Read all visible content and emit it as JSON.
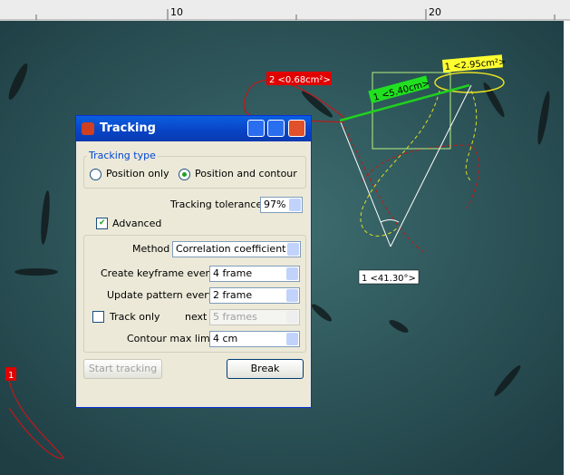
{
  "ruler": {
    "labels": [
      "10",
      "20"
    ]
  },
  "overlay": {
    "labels": [
      "2 <0.68cm²>",
      "1 <2.95cm²>",
      "1 <5.40cm>",
      "1 <41.30°>",
      "1"
    ]
  },
  "dialog": {
    "title": "Tracking",
    "tracking_type": {
      "legend": "Tracking type",
      "options": [
        "Position only",
        "Position and contour"
      ]
    },
    "tolerance": {
      "label": "Tracking tolerance",
      "value": "97%"
    },
    "advanced": "Advanced",
    "method": {
      "label": "Method",
      "value": "Correlation coefficient"
    },
    "keyframe": {
      "label": "Create keyframe every",
      "value": "4 frame"
    },
    "pattern": {
      "label": "Update pattern every",
      "value": "2 frame"
    },
    "track_only": {
      "label": "Track only",
      "next": "next",
      "value": "5 frames"
    },
    "contour": {
      "label": "Contour max limit",
      "value": "4 cm"
    },
    "buttons": [
      "Start tracking",
      "Break"
    ]
  }
}
